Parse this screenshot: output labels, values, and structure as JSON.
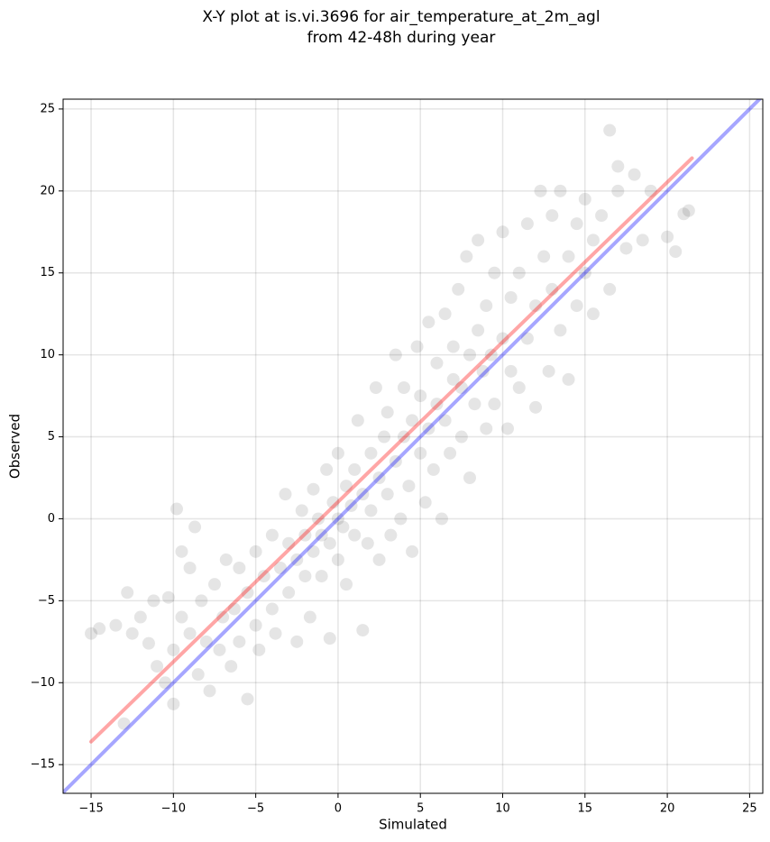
{
  "chart_data": {
    "type": "scatter",
    "title": [
      "X-Y plot at is.vi.3696 for air_temperature_at_2m_agl",
      "from 42-48h during year"
    ],
    "xlabel": "Simulated",
    "ylabel": "Observed",
    "xlim": [
      -16.7,
      25.8
    ],
    "ylim": [
      -16.75,
      25.6
    ],
    "xticks": [
      {
        "value": -15,
        "label": "−15"
      },
      {
        "value": -10,
        "label": "−10"
      },
      {
        "value": -5,
        "label": "−5"
      },
      0,
      5,
      10,
      15,
      20,
      25
    ],
    "yticks": [
      {
        "value": -15,
        "label": "−15"
      },
      {
        "value": -10,
        "label": "−10"
      },
      {
        "value": -5,
        "label": "−5"
      },
      0,
      5,
      10,
      15,
      20,
      25
    ],
    "grid": true,
    "series": [
      {
        "type": "scatter",
        "color": "#000000",
        "alpha": 0.1,
        "points": [
          [
            -15,
            -7
          ],
          [
            -14.5,
            -6.7
          ],
          [
            -13.5,
            -6.5
          ],
          [
            -13,
            -12.5
          ],
          [
            -12.8,
            -4.5
          ],
          [
            -12.5,
            -7
          ],
          [
            -12,
            -6
          ],
          [
            -11.5,
            -7.6
          ],
          [
            -11,
            -9
          ],
          [
            -11.2,
            -5
          ],
          [
            -10.5,
            -10
          ],
          [
            -10.3,
            -4.8
          ],
          [
            -10,
            -8
          ],
          [
            -10,
            -11.3
          ],
          [
            -9.8,
            0.6
          ],
          [
            -9.5,
            -6
          ],
          [
            -9.5,
            -2
          ],
          [
            -9,
            -7
          ],
          [
            -9,
            -3
          ],
          [
            -8.7,
            -0.5
          ],
          [
            -8.5,
            -9.5
          ],
          [
            -8.3,
            -5
          ],
          [
            -8,
            -7.5
          ],
          [
            -7.8,
            -10.5
          ],
          [
            -7.5,
            -4
          ],
          [
            -7.2,
            -8
          ],
          [
            -7,
            -6
          ],
          [
            -6.8,
            -2.5
          ],
          [
            -6.5,
            -9
          ],
          [
            -6.3,
            -5.5
          ],
          [
            -6,
            -7.5
          ],
          [
            -6,
            -3
          ],
          [
            -5.5,
            -11
          ],
          [
            -5.5,
            -4.5
          ],
          [
            -5,
            -6.5
          ],
          [
            -5,
            -2
          ],
          [
            -4.8,
            -8
          ],
          [
            -4.5,
            -3.5
          ],
          [
            -4,
            -5.5
          ],
          [
            -4,
            -1
          ],
          [
            -3.8,
            -7
          ],
          [
            -3.5,
            -3
          ],
          [
            -3.2,
            1.5
          ],
          [
            -3,
            -4.5
          ],
          [
            -3,
            -1.5
          ],
          [
            -2.5,
            -7.5
          ],
          [
            -2.5,
            -2.5
          ],
          [
            -2.2,
            0.5
          ],
          [
            -2,
            -3.5
          ],
          [
            -2,
            -1
          ],
          [
            -1.7,
            -6
          ],
          [
            -1.5,
            -2
          ],
          [
            -1.5,
            1.8
          ],
          [
            -1.2,
            0
          ],
          [
            -1,
            -3.5
          ],
          [
            -1,
            -1
          ],
          [
            -0.7,
            3
          ],
          [
            -0.5,
            -7.3
          ],
          [
            -0.5,
            -1.5
          ],
          [
            -0.3,
            1
          ],
          [
            0,
            -2.5
          ],
          [
            0,
            0
          ],
          [
            0,
            4
          ],
          [
            0.3,
            -0.5
          ],
          [
            0.5,
            2
          ],
          [
            0.5,
            -4
          ],
          [
            0.8,
            0.8
          ],
          [
            1,
            -1
          ],
          [
            1,
            3
          ],
          [
            1.2,
            6
          ],
          [
            1.5,
            -6.8
          ],
          [
            1.5,
            1.5
          ],
          [
            1.8,
            -1.5
          ],
          [
            2,
            4
          ],
          [
            2,
            0.5
          ],
          [
            2.3,
            8
          ],
          [
            2.5,
            2.5
          ],
          [
            2.5,
            -2.5
          ],
          [
            2.8,
            5
          ],
          [
            3,
            1.5
          ],
          [
            3,
            6.5
          ],
          [
            3.2,
            -1
          ],
          [
            3.5,
            3.5
          ],
          [
            3.5,
            10
          ],
          [
            3.8,
            0
          ],
          [
            4,
            5
          ],
          [
            4,
            8
          ],
          [
            4.3,
            2
          ],
          [
            4.5,
            -2
          ],
          [
            4.5,
            6
          ],
          [
            4.8,
            10.5
          ],
          [
            5,
            4
          ],
          [
            5,
            7.5
          ],
          [
            5.3,
            1
          ],
          [
            5.5,
            5.5
          ],
          [
            5.5,
            12
          ],
          [
            5.8,
            3
          ],
          [
            6,
            7
          ],
          [
            6,
            9.5
          ],
          [
            6.3,
            0
          ],
          [
            6.5,
            6
          ],
          [
            6.5,
            12.5
          ],
          [
            6.8,
            4
          ],
          [
            7,
            8.5
          ],
          [
            7,
            10.5
          ],
          [
            7.3,
            14
          ],
          [
            7.5,
            5
          ],
          [
            7.5,
            8
          ],
          [
            7.8,
            16
          ],
          [
            8,
            10
          ],
          [
            8,
            2.5
          ],
          [
            8.3,
            7
          ],
          [
            8.5,
            11.5
          ],
          [
            8.5,
            17
          ],
          [
            8.8,
            9
          ],
          [
            9,
            5.5
          ],
          [
            9,
            13
          ],
          [
            9.3,
            10
          ],
          [
            9.5,
            15
          ],
          [
            9.5,
            7
          ],
          [
            10,
            11
          ],
          [
            10,
            17.5
          ],
          [
            10.3,
            5.5
          ],
          [
            10.5,
            9
          ],
          [
            10.5,
            13.5
          ],
          [
            11,
            15
          ],
          [
            11,
            8
          ],
          [
            11.5,
            18
          ],
          [
            11.5,
            11
          ],
          [
            12,
            13
          ],
          [
            12,
            6.8
          ],
          [
            12.3,
            20
          ],
          [
            12.5,
            16
          ],
          [
            12.8,
            9
          ],
          [
            13,
            14
          ],
          [
            13,
            18.5
          ],
          [
            13.5,
            11.5
          ],
          [
            13.5,
            20
          ],
          [
            14,
            16
          ],
          [
            14,
            8.5
          ],
          [
            14.5,
            13
          ],
          [
            14.5,
            18
          ],
          [
            15,
            15
          ],
          [
            15,
            19.5
          ],
          [
            15.5,
            12.5
          ],
          [
            15.5,
            17
          ],
          [
            16,
            18.5
          ],
          [
            16.5,
            23.7
          ],
          [
            16.5,
            14
          ],
          [
            17,
            20
          ],
          [
            17,
            21.5
          ],
          [
            17.5,
            16.5
          ],
          [
            18,
            21
          ],
          [
            18.5,
            17
          ],
          [
            19,
            20
          ],
          [
            20,
            17.2
          ],
          [
            20.5,
            16.3
          ],
          [
            21,
            18.6
          ],
          [
            21.3,
            18.8
          ]
        ]
      },
      {
        "type": "line",
        "color": "#ff0000",
        "alpha": 0.35,
        "x": [
          -15,
          21.5
        ],
        "y": [
          -13.6,
          22
        ]
      },
      {
        "type": "line",
        "color": "#0000ff",
        "alpha": 0.35,
        "x": [
          -16.7,
          25.8
        ],
        "y": [
          -16.7,
          25.8
        ]
      }
    ]
  }
}
